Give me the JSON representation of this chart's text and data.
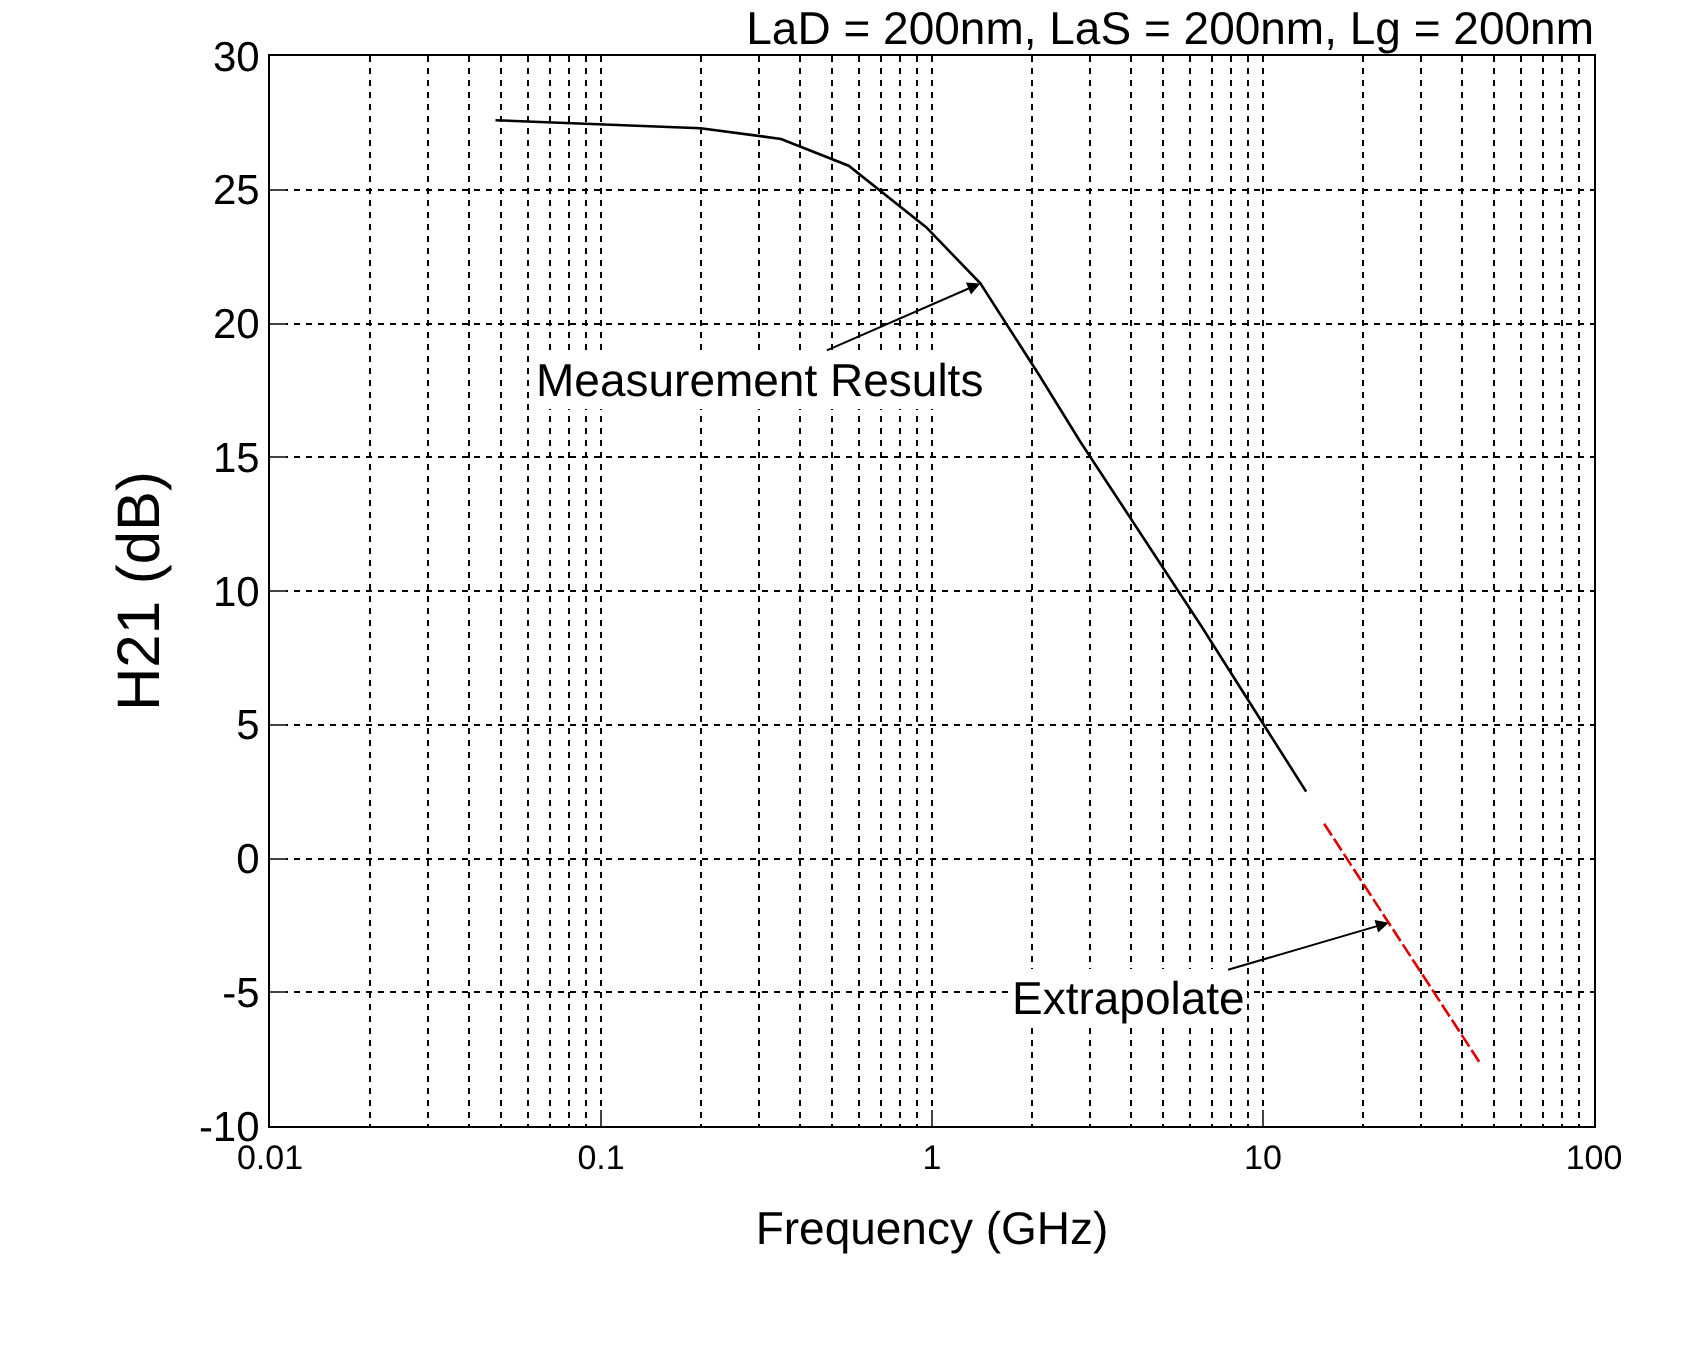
{
  "chart_data": {
    "type": "line",
    "title": "LaD = 200nm, LaS = 200nm, Lg = 200nm",
    "xlabel": "Frequency (GHz)",
    "ylabel": "H21 (dB)",
    "log": "x",
    "series": [
      {
        "color": "#000000",
        "line_style": "solid",
        "x": [
          0.048,
          0.2,
          0.35,
          0.56,
          0.96,
          1.4,
          2.1,
          2.8,
          6.5,
          13.5
        ],
        "values": [
          27.6,
          27.3,
          26.9,
          25.9,
          23.6,
          21.5,
          18.1,
          15.6,
          8.7,
          2.5
        ]
      },
      {
        "color": "#e00000",
        "line_style": "dashed",
        "x": [
          15.3,
          45
        ],
        "values": [
          1.3,
          -7.6
        ]
      }
    ],
    "xlim": [
      0.01,
      100
    ],
    "xticks": [
      0.01,
      0.1,
      1,
      10,
      100
    ],
    "ylim": [
      -10,
      30
    ],
    "yticks": [
      -10,
      -5,
      0,
      5,
      10,
      15,
      20,
      25,
      30
    ],
    "grid": true,
    "legend": false,
    "marker": "none",
    "annotations": [
      {
        "text": "Measurement Results",
        "x": 1.4,
        "y": 21.5
      },
      {
        "text": "Extrapolate",
        "x": 24,
        "y": -2.4
      }
    ]
  }
}
